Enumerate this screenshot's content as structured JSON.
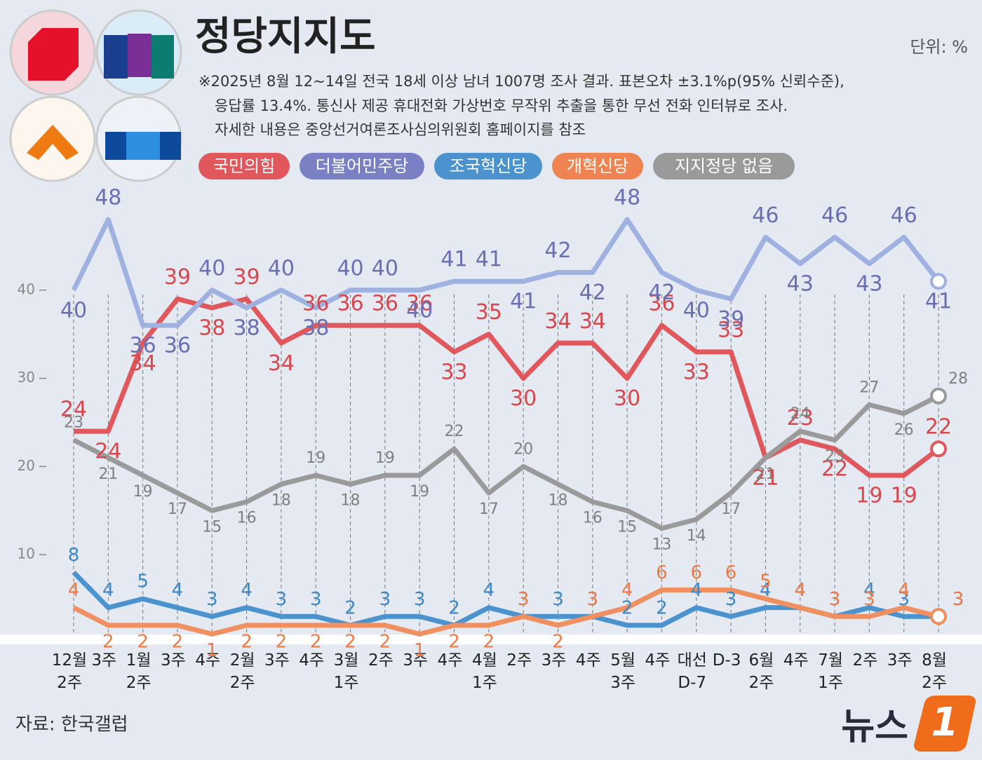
{
  "title": "정당지지도",
  "unit": "단위: %",
  "note": [
    "※2025년 8월 12~14일 전국 18세 이상 남녀 1007명 조사 결과. 표본오차 ±3.1%p(95% 신뢰수준),",
    "응답률 13.4%. 통신사 제공 휴대전화 가상번호 무작위 추출을 통한 무선 전화 인터뷰로 조사.",
    "자세한 내용은 중앙선거여론조사심의위원회 홈페이지를 참조"
  ],
  "source": "자료: 한국갤럽",
  "logo": {
    "text": "뉴스",
    "mark": "1"
  },
  "chart_data": {
    "type": "line",
    "categories": [
      "12월\n2주",
      "3주",
      "1월\n2주",
      "3주",
      "4주",
      "2월\n2주",
      "3주",
      "4주",
      "3월\n1주",
      "2주",
      "3주",
      "4주",
      "4월\n1주",
      "2주",
      "3주",
      "4주",
      "5월\n3주",
      "4주",
      "대선\nD-7",
      "D-3",
      "6월\n2주",
      "4주",
      "7월\n1주",
      "2주",
      "3주",
      "8월\n2주"
    ],
    "series": [
      {
        "name": "국민의힘",
        "color": "#e0585c",
        "values": [
          24,
          24,
          34,
          39,
          38,
          39,
          34,
          36,
          36,
          36,
          36,
          33,
          35,
          30,
          34,
          34,
          30,
          36,
          33,
          33,
          21,
          23,
          22,
          19,
          19,
          22
        ]
      },
      {
        "name": "더불어민주당",
        "color": "#7a80c4",
        "values": [
          40,
          48,
          36,
          36,
          40,
          38,
          40,
          38,
          40,
          40,
          40,
          41,
          41,
          41,
          42,
          42,
          48,
          42,
          40,
          39,
          46,
          43,
          46,
          43,
          46,
          41
        ]
      },
      {
        "name": "조국혁신당",
        "color": "#4a93cf",
        "values": [
          8,
          4,
          5,
          4,
          3,
          4,
          3,
          3,
          2,
          3,
          3,
          2,
          4,
          3,
          3,
          3,
          2,
          2,
          4,
          3,
          4,
          4,
          3,
          4,
          3,
          3
        ]
      },
      {
        "name": "개혁신당",
        "color": "#ef8452",
        "values": [
          4,
          2,
          2,
          2,
          1,
          2,
          2,
          2,
          2,
          2,
          1,
          2,
          2,
          3,
          2,
          3,
          4,
          6,
          6,
          6,
          5,
          4,
          3,
          3,
          4,
          3
        ]
      },
      {
        "name": "지지정당 없음",
        "color": "#9a9a9a",
        "values": [
          23,
          21,
          19,
          17,
          15,
          16,
          18,
          19,
          18,
          19,
          19,
          22,
          17,
          20,
          18,
          16,
          15,
          13,
          14,
          17,
          21,
          24,
          23,
          27,
          26,
          28
        ]
      }
    ],
    "ylim": [
      0,
      50
    ],
    "yticks": [
      10,
      20,
      30,
      40
    ]
  }
}
